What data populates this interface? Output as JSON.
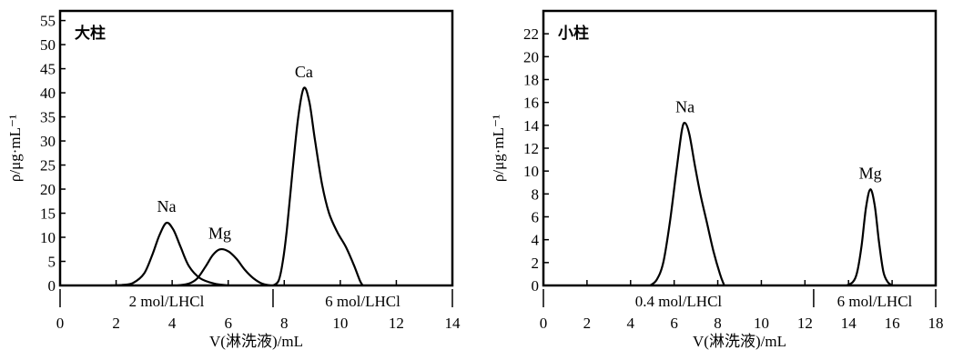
{
  "chart_data": [
    {
      "type": "line",
      "title": "大柱",
      "xlabel": "V(淋洗液)/mL",
      "ylabel": "ρ/μg·mL⁻¹",
      "xlim": [
        0,
        14
      ],
      "ylim": [
        0,
        57
      ],
      "x_ticks": [
        "0",
        "2",
        "4",
        "6",
        "8",
        "10",
        "12",
        "14"
      ],
      "y_ticks": [
        "0",
        "5",
        "10",
        "15",
        "20",
        "25",
        "30",
        "35",
        "40",
        "45",
        "50",
        "55"
      ],
      "grid": false,
      "series": [
        {
          "name": "Na",
          "peak_x": 3.8,
          "peak_y": 13,
          "points": [
            [
              1.8,
              0
            ],
            [
              2.2,
              0.1
            ],
            [
              2.6,
              0.5
            ],
            [
              3.0,
              2.5
            ],
            [
              3.3,
              6.5
            ],
            [
              3.55,
              10.5
            ],
            [
              3.8,
              13
            ],
            [
              4.05,
              11.5
            ],
            [
              4.3,
              8
            ],
            [
              4.6,
              4
            ],
            [
              5.0,
              1.5
            ],
            [
              5.5,
              0.4
            ],
            [
              6.0,
              0
            ]
          ]
        },
        {
          "name": "Mg",
          "peak_x": 5.7,
          "peak_y": 7.5,
          "points": [
            [
              4.2,
              0
            ],
            [
              4.6,
              0.4
            ],
            [
              4.9,
              1.5
            ],
            [
              5.2,
              4
            ],
            [
              5.45,
              6.3
            ],
            [
              5.7,
              7.5
            ],
            [
              6.0,
              7.1
            ],
            [
              6.3,
              5.5
            ],
            [
              6.6,
              3.2
            ],
            [
              6.9,
              1.5
            ],
            [
              7.2,
              0.4
            ],
            [
              7.5,
              0
            ]
          ]
        },
        {
          "name": "Ca",
          "peak_x": 8.7,
          "peak_y": 41,
          "points": [
            [
              7.6,
              0
            ],
            [
              7.8,
              1
            ],
            [
              7.95,
              5
            ],
            [
              8.1,
              12
            ],
            [
              8.3,
              24
            ],
            [
              8.5,
              35
            ],
            [
              8.7,
              41
            ],
            [
              8.9,
              38
            ],
            [
              9.1,
              30
            ],
            [
              9.35,
              21
            ],
            [
              9.6,
              15
            ],
            [
              9.9,
              11
            ],
            [
              10.2,
              8
            ],
            [
              10.5,
              4
            ],
            [
              10.7,
              1
            ],
            [
              10.8,
              0
            ]
          ]
        }
      ],
      "eluents": [
        {
          "label": "2 mol/LHCl",
          "range": [
            0,
            7.6
          ]
        },
        {
          "label": "6 mol/LHCl",
          "range": [
            7.6,
            14
          ]
        }
      ]
    },
    {
      "type": "line",
      "title": "小柱",
      "xlabel": "V(淋洗液)/mL",
      "ylabel": "ρ/μg·mL⁻¹",
      "xlim": [
        0,
        18
      ],
      "ylim": [
        0,
        24
      ],
      "x_ticks": [
        "0",
        "2",
        "4",
        "6",
        "8",
        "10",
        "12",
        "14",
        "16",
        "18"
      ],
      "y_ticks": [
        "0",
        "2",
        "4",
        "6",
        "8",
        "10",
        "12",
        "14",
        "16",
        "18",
        "20",
        "22"
      ],
      "grid": false,
      "series": [
        {
          "name": "Na",
          "peak_x": 6.5,
          "peak_y": 14.2,
          "points": [
            [
              4.9,
              0
            ],
            [
              5.2,
              0.5
            ],
            [
              5.5,
              2
            ],
            [
              5.8,
              5.5
            ],
            [
              6.1,
              10
            ],
            [
              6.35,
              13.5
            ],
            [
              6.5,
              14.2
            ],
            [
              6.7,
              13.2
            ],
            [
              6.95,
              10.5
            ],
            [
              7.2,
              8
            ],
            [
              7.5,
              5.5
            ],
            [
              7.8,
              3
            ],
            [
              8.1,
              1
            ],
            [
              8.3,
              0
            ]
          ]
        },
        {
          "name": "Mg",
          "peak_x": 15.0,
          "peak_y": 8.4,
          "points": [
            [
              13.9,
              0
            ],
            [
              14.2,
              0.3
            ],
            [
              14.4,
              1.2
            ],
            [
              14.6,
              3.5
            ],
            [
              14.8,
              6.8
            ],
            [
              15.0,
              8.4
            ],
            [
              15.2,
              7
            ],
            [
              15.4,
              3.8
            ],
            [
              15.6,
              1.2
            ],
            [
              15.8,
              0.3
            ],
            [
              16.0,
              0
            ]
          ]
        }
      ],
      "eluents": [
        {
          "label": "0.4 mol/LHCl",
          "range": [
            0,
            12.4
          ]
        },
        {
          "label": "6 mol/LHCl",
          "range": [
            12.4,
            18
          ]
        }
      ]
    }
  ]
}
